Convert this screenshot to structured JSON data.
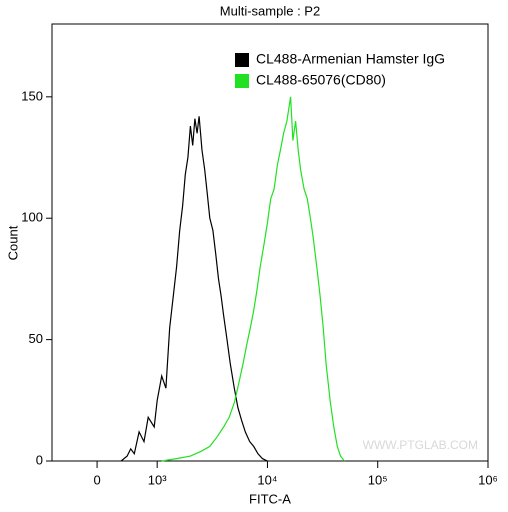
{
  "chart_data": {
    "type": "line",
    "title": "Multi-sample : P2",
    "xlabel": "FITC-A",
    "ylabel": "Count",
    "xscale": "symlog",
    "xlim": [
      -750,
      1000000
    ],
    "xticks": [
      0,
      {
        "value": 1000,
        "label": "10³"
      },
      {
        "value": 10000,
        "label": "10⁴"
      },
      {
        "value": 100000,
        "label": "10⁵"
      },
      {
        "value": 1000000,
        "label": "10⁶"
      }
    ],
    "ylim": [
      0,
      180
    ],
    "yticks": [
      0,
      50,
      100,
      150
    ],
    "legend": "upper right",
    "watermark": "WWW.PTGLAB.COM",
    "series": [
      {
        "name": "CL488-Armenian Hamster IgG",
        "color": "#000000",
        "x": [
          400,
          500,
          560,
          620,
          700,
          780,
          850,
          950,
          1000,
          1100,
          1200,
          1300,
          1400,
          1500,
          1600,
          1700,
          1800,
          1900,
          2000,
          2100,
          2200,
          2300,
          2400,
          2550,
          2700,
          2850,
          3000,
          3200,
          3400,
          3600,
          3800,
          4000,
          4300,
          4600,
          5000,
          5400,
          5800,
          6300,
          6900,
          7500,
          8200,
          9000,
          10000
        ],
        "values": [
          0,
          2,
          5,
          3,
          12,
          8,
          18,
          14,
          25,
          35,
          30,
          55,
          68,
          80,
          95,
          105,
          118,
          125,
          138,
          130,
          141,
          135,
          142,
          128,
          120,
          110,
          100,
          95,
          85,
          75,
          68,
          60,
          50,
          40,
          30,
          22,
          17,
          12,
          8,
          6,
          3,
          1,
          0
        ]
      },
      {
        "name": "CL488-65076(CD80)",
        "color": "#22e022",
        "x": [
          1100,
          1500,
          2000,
          2500,
          3000,
          3500,
          4000,
          4500,
          5000,
          5500,
          6000,
          6500,
          7000,
          7500,
          8000,
          8600,
          9200,
          10000,
          10700,
          11500,
          12300,
          13100,
          14000,
          15000,
          16200,
          17000,
          18000,
          19000,
          20000,
          21500,
          23000,
          24500,
          26000,
          28000,
          30000,
          32000,
          34000,
          37000,
          40000,
          43000,
          46000,
          50000
        ],
        "values": [
          0,
          1,
          2,
          4,
          6,
          10,
          14,
          18,
          24,
          32,
          40,
          48,
          55,
          62,
          70,
          80,
          88,
          98,
          108,
          112,
          122,
          128,
          135,
          140,
          150,
          132,
          140,
          128,
          120,
          112,
          108,
          100,
          92,
          80,
          68,
          55,
          40,
          25,
          14,
          6,
          2,
          0
        ]
      }
    ]
  }
}
